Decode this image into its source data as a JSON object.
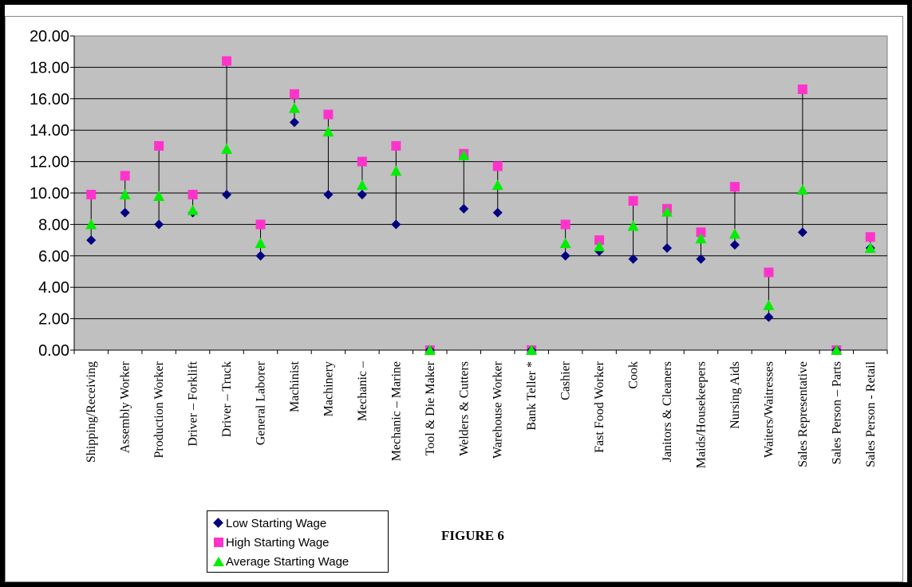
{
  "colors": {
    "low": "#000080",
    "high": "#ff33cc",
    "average": "#00ee00",
    "plot_bg": "#c0c0c0"
  },
  "legend": {
    "low": "Low Starting Wage",
    "high": "High Starting Wage",
    "average": "Average Starting Wage"
  },
  "figure_label": "FIGURE 6",
  "chart_data": {
    "type": "scatter",
    "title": "",
    "xlabel": "",
    "ylabel": "",
    "ylim": [
      0,
      20
    ],
    "yticks": [
      "0.00",
      "2.00",
      "4.00",
      "6.00",
      "8.00",
      "10.00",
      "12.00",
      "14.00",
      "16.00",
      "18.00",
      "20.00"
    ],
    "grid": true,
    "legend_position": "bottom-left",
    "categories": [
      "Shipping/Receiving",
      "Assembly Worker",
      "Production Worker",
      "Driver – Forklift",
      "Driver – Truck",
      "General Laborer",
      "Machinist",
      "Machinery",
      "Mechanic –",
      "Mechanic – Marine",
      "Tool & Die Maker",
      "Welders & Cutters",
      "Warehouse Worker",
      "Bank Teller  *",
      "Cashier",
      "Fast Food Worker",
      "Cook",
      "Janitors & Cleaners",
      "Maids/Housekeepers",
      "Nursing Aids",
      "Waiters/Waitresses",
      "Sales Representative",
      "Sales Person – Parts",
      "Sales Person - Retail"
    ],
    "series": [
      {
        "name": "Low Starting Wage",
        "marker": "diamond",
        "values": [
          7.0,
          8.75,
          8.0,
          8.75,
          9.9,
          6.0,
          14.5,
          9.9,
          9.9,
          8.0,
          0,
          9.0,
          8.75,
          0,
          6.0,
          6.3,
          5.8,
          6.5,
          5.8,
          6.7,
          2.1,
          7.5,
          0,
          6.5
        ]
      },
      {
        "name": "High Starting Wage",
        "marker": "square",
        "values": [
          9.9,
          11.1,
          13.0,
          9.9,
          18.4,
          8.0,
          16.3,
          15.0,
          12.0,
          13.0,
          0,
          12.5,
          11.7,
          0,
          8.0,
          7.0,
          9.5,
          9.0,
          7.5,
          10.4,
          4.95,
          16.6,
          0,
          7.2
        ]
      },
      {
        "name": "Average Starting Wage",
        "marker": "triangle",
        "values": [
          8.0,
          9.9,
          9.8,
          8.9,
          12.8,
          6.8,
          15.4,
          13.9,
          10.5,
          11.4,
          0,
          12.4,
          10.5,
          0,
          6.8,
          6.6,
          7.9,
          8.8,
          7.1,
          7.4,
          2.85,
          10.2,
          0,
          6.5
        ]
      }
    ]
  }
}
